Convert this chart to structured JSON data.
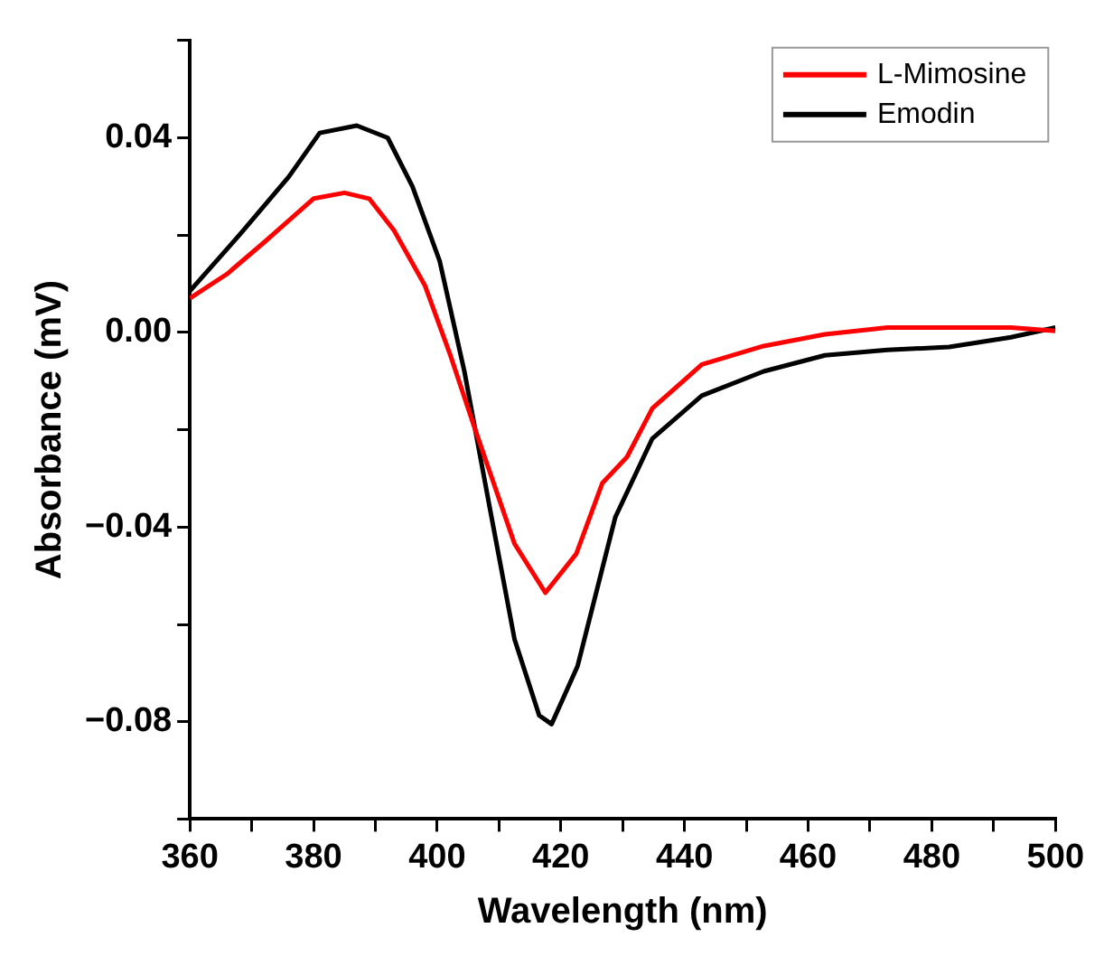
{
  "chart_data": {
    "type": "line",
    "xlabel": "Wavelength (nm)",
    "ylabel": "Absorbance (mV)",
    "xlim": [
      360,
      500
    ],
    "ylim": [
      -0.1,
      0.06
    ],
    "xticks": [
      360,
      {
        "value": 370,
        "label": null
      },
      380,
      {
        "value": 390,
        "label": null
      },
      400,
      {
        "value": 410,
        "label": null
      },
      420,
      {
        "value": 430,
        "label": null
      },
      440,
      {
        "value": 450,
        "label": null
      },
      460,
      {
        "value": 470,
        "label": null
      },
      480,
      {
        "value": 490,
        "label": null
      },
      500
    ],
    "yticks": [
      {
        "value": -0.1,
        "label": null
      },
      {
        "value": -0.08,
        "label": "−0.08"
      },
      {
        "value": -0.06,
        "label": null
      },
      {
        "value": -0.04,
        "label": "−0.04"
      },
      {
        "value": -0.02,
        "label": null
      },
      {
        "value": 0,
        "label": "0.00"
      },
      {
        "value": 0.02,
        "label": null
      },
      {
        "value": 0.04,
        "label": "0.04"
      },
      {
        "value": 0.06,
        "label": null
      }
    ],
    "grid": false,
    "legend": "top right",
    "marker": "none",
    "line_style": "solid",
    "series": [
      {
        "name": "L-Mimosine",
        "color": "#ff0000",
        "x": [
          360,
          366,
          372,
          380,
          385,
          389,
          393,
          398,
          402,
          406,
          412.5,
          417.5,
          422.5,
          426.7,
          430.7,
          434.8,
          442.8,
          452.8,
          462.7,
          472.8,
          482.8,
          492.8,
          500
        ],
        "values": [
          0.007,
          0.012,
          0.0185,
          0.0275,
          0.0287,
          0.0275,
          0.021,
          0.0097,
          -0.0042,
          -0.0194,
          -0.0434,
          -0.0535,
          -0.0455,
          -0.031,
          -0.0256,
          -0.0156,
          -0.0066,
          -0.0028,
          -0.0004,
          0.001,
          0.001,
          0.001,
          0.0003
        ]
      },
      {
        "name": "Emodin",
        "color": "#000000",
        "x": [
          360,
          368,
          376,
          381,
          387,
          392,
          396,
          400.4,
          404.4,
          408.5,
          412.5,
          416.5,
          418.5,
          422.7,
          428.8,
          434.8,
          442.8,
          452.8,
          462.7,
          472.8,
          482.8,
          492.8,
          500
        ],
        "values": [
          0.0085,
          0.02,
          0.032,
          0.041,
          0.0425,
          0.04,
          0.03,
          0.0147,
          -0.008,
          -0.036,
          -0.063,
          -0.0787,
          -0.0805,
          -0.0686,
          -0.038,
          -0.0218,
          -0.013,
          -0.008,
          -0.0047,
          -0.0036,
          -0.003,
          -0.001,
          0.001
        ]
      }
    ]
  }
}
